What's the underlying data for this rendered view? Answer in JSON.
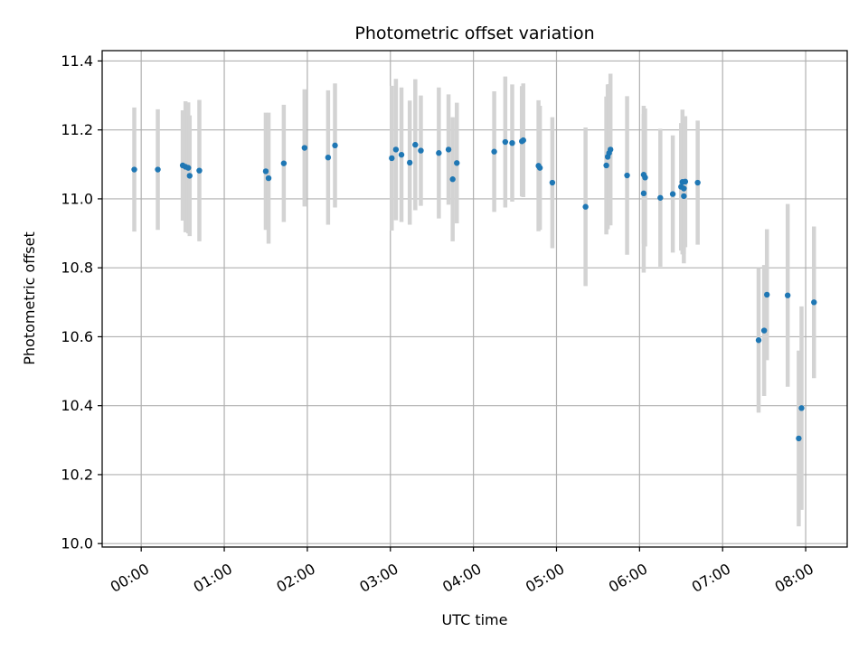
{
  "chart_data": {
    "type": "scatter",
    "title": "Photometric offset variation",
    "xlabel": "UTC time",
    "ylabel": "Photometric offset",
    "xlim": [
      -0.47,
      8.5
    ],
    "ylim": [
      9.99,
      11.43
    ],
    "grid": true,
    "x_ticks": [
      0,
      1,
      2,
      3,
      4,
      5,
      6,
      7,
      8
    ],
    "x_tick_labels": [
      "00:00",
      "01:00",
      "02:00",
      "03:00",
      "04:00",
      "05:00",
      "06:00",
      "07:00",
      "08:00"
    ],
    "y_ticks": [
      10.0,
      10.2,
      10.4,
      10.6,
      10.8,
      11.0,
      11.2,
      11.4
    ],
    "y_tick_labels": [
      "10.0",
      "10.2",
      "10.4",
      "10.6",
      "10.8",
      "11.0",
      "11.2",
      "11.4"
    ],
    "colors": {
      "marker": "#1f77b4",
      "errorbar": "#d3d3d3",
      "grid": "#b0b0b0"
    },
    "series": [
      {
        "x": [
          "23:55",
          "00:12",
          "00:30",
          "00:32",
          "00:34",
          "00:35",
          "00:42",
          "01:30",
          "01:32",
          "01:43",
          "01:58",
          "02:15",
          "02:20",
          "03:01",
          "03:04",
          "03:08",
          "03:14",
          "03:18",
          "03:22",
          "03:35",
          "03:42",
          "03:45",
          "03:48",
          "04:15",
          "04:23",
          "04:28",
          "04:35",
          "04:36",
          "04:47",
          "04:48",
          "04:57",
          "05:21",
          "05:36",
          "05:37",
          "05:38",
          "05:39",
          "05:51",
          "06:03",
          "06:03",
          "06:04",
          "06:15",
          "06:24",
          "06:30",
          "06:31",
          "06:32",
          "06:32",
          "06:33",
          "06:42"
        ],
        "y": [
          11.085,
          11.085,
          11.097,
          11.093,
          11.09,
          11.067,
          11.082,
          11.08,
          11.06,
          11.103,
          11.148,
          11.12,
          11.155,
          11.118,
          11.143,
          11.128,
          11.105,
          11.157,
          11.14,
          11.133,
          11.143,
          11.057,
          11.104,
          11.137,
          11.165,
          11.162,
          11.167,
          11.17,
          11.096,
          11.09,
          11.047,
          10.977,
          11.097,
          11.122,
          11.133,
          11.143,
          11.068,
          11.07,
          11.016,
          11.062,
          11.003,
          11.014,
          11.035,
          11.049,
          11.03,
          11.008,
          11.05,
          11.047
        ],
        "yerr": [
          0.18,
          0.175,
          0.16,
          0.19,
          0.19,
          0.175,
          0.205,
          0.17,
          0.19,
          0.17,
          0.17,
          0.195,
          0.18,
          0.21,
          0.205,
          0.195,
          0.18,
          0.19,
          0.16,
          0.19,
          0.16,
          0.18,
          0.175,
          0.175,
          0.19,
          0.17,
          0.16,
          0.165,
          0.19,
          0.18,
          0.19,
          0.23,
          0.2,
          0.21,
          0.2,
          0.22,
          0.23,
          0.2,
          0.23,
          0.2,
          0.2,
          0.17,
          0.185,
          0.21,
          0.19,
          0.195,
          0.19,
          0.18
        ]
      },
      {
        "x": [
          "07:26",
          "07:30",
          "07:32",
          "07:47",
          "07:55",
          "07:57",
          "08:06"
        ],
        "y": [
          10.59,
          10.618,
          10.722,
          10.72,
          10.305,
          10.393,
          10.7
        ],
        "yerr": [
          0.21,
          0.19,
          0.19,
          0.265,
          0.255,
          0.295,
          0.22
        ]
      }
    ]
  }
}
